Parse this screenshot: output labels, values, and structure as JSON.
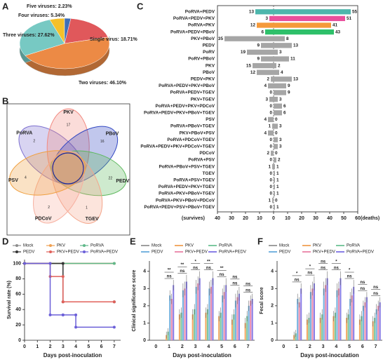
{
  "chart_data": [
    {
      "type": "pie",
      "panel": "A",
      "categories": [
        "Single virus: 18.71%",
        "Two viruses: 46.10%",
        "Three viruses: 27.62%",
        "Four viruses: 5.34%",
        "Five viruses: 2.23%"
      ],
      "values": [
        18.71,
        46.1,
        27.62,
        5.34,
        2.23
      ],
      "colors": [
        "#e0585b",
        "#ec8a45",
        "#77c9c3",
        "#f5c02a",
        "#3f6fb8"
      ]
    },
    {
      "type": "venn",
      "panel": "B",
      "sets": [
        {
          "name": "PoRVA",
          "color": "#7d70cf",
          "value": 2
        },
        {
          "name": "PKV",
          "color": "#f28b82",
          "value": 17
        },
        {
          "name": "PBoV",
          "color": "#3147c2",
          "value": 16
        },
        {
          "name": "PEDV",
          "color": "#5cb85c",
          "value": 22
        },
        {
          "name": "TGEV",
          "color": "#f4a58a",
          "value": 1
        },
        {
          "name": "PDCoV",
          "color": "#f7b0a0",
          "value": 2
        },
        {
          "name": "PSV",
          "color": "#f0a040",
          "value": 4
        }
      ]
    },
    {
      "type": "bar",
      "orientation": "horizontal",
      "panel": "C",
      "categories": [
        "PoRVA+PEDV",
        "PoRVA+PEDV+PKV",
        "PoRVA+PKV",
        "PoRVA+PEDV+PBoV",
        "PKV+PBoV",
        "PEDV",
        "PoRV",
        "PoRV+PBoV",
        "PKV",
        "PBoV",
        "PEDV+PKV",
        "PoRVA+PEDV+PKV+PBoV",
        "PoRVA+PEDV+TGEV",
        "PKV+TGEV",
        "PoRVA+PEDV+PKV+PDCoV",
        "PoRVA+PEDV+PKV+PBoV+TGEV",
        "PSV",
        "PoRVA+PBoV+TGEV",
        "PKV+PBoV+PSV",
        "PoRVA+PDCoV+TGEV",
        "PoRVA+PEDV+PKV+PDCoV+TGEV",
        "PDCoV",
        "PoRVA+PSV",
        "PoRVA+PBoV+PSV+TGEV",
        "TGEV",
        "PoRVA+PSV+TGEV",
        "PoRVA+PEDV+PKV+TGEV",
        "PoRVA+PKV+PBoV+TGEV",
        "PoRVA+PKV+PBoV+PDCoV",
        "PoRVA+PEDV+PSV+PBoV+TGEV"
      ],
      "colors": [
        "#4db6ac",
        "#e94f9c",
        "#f59a3b",
        "#2ec06a",
        "#a6a6a6",
        "#a6a6a6",
        "#a6a6a6",
        "#a6a6a6",
        "#a6a6a6",
        "#a6a6a6",
        "#a6a6a6",
        "#a6a6a6",
        "#a6a6a6",
        "#a6a6a6",
        "#a6a6a6",
        "#a6a6a6",
        "#a6a6a6",
        "#a6a6a6",
        "#a6a6a6",
        "#a6a6a6",
        "#a6a6a6",
        "#a6a6a6",
        "#a6a6a6",
        "#a6a6a6",
        "#a6a6a6",
        "#a6a6a6",
        "#a6a6a6",
        "#a6a6a6",
        "#a6a6a6",
        "#a6a6a6"
      ],
      "series": [
        {
          "name": "survives",
          "values": [
            -13,
            -3,
            -12,
            -6,
            -35,
            -9,
            -19,
            -9,
            -15,
            -12,
            -2,
            -4,
            0,
            -3,
            0,
            0,
            -4,
            -1,
            -4,
            0,
            0,
            -2,
            0,
            -1,
            0,
            0,
            0,
            0,
            -1,
            0
          ],
          "value_labels": [
            "13",
            "3",
            "12",
            "6",
            "35",
            "9",
            "19",
            "9",
            "15",
            "12",
            "2",
            "4",
            "0",
            "3",
            "0",
            "0",
            "4",
            "1",
            "4",
            "0",
            "0",
            "2",
            "0",
            "1",
            "0",
            "0",
            "0",
            "0",
            "1",
            "0"
          ]
        },
        {
          "name": "deaths",
          "values": [
            55,
            51,
            41,
            43,
            8,
            13,
            3,
            11,
            2,
            4,
            13,
            9,
            9,
            3,
            6,
            6,
            0,
            3,
            0,
            3,
            3,
            0,
            2,
            1,
            1,
            1,
            1,
            1,
            0,
            1
          ]
        }
      ],
      "xlim": [
        -40,
        60
      ],
      "xticks": [
        {
          "value": -40,
          "label": "40"
        },
        {
          "value": -30,
          "label": "30"
        },
        {
          "value": -20,
          "label": "20"
        },
        {
          "value": -10,
          "label": "10"
        },
        0,
        10,
        20,
        30,
        40,
        50,
        60
      ],
      "xlabel_left": "(survives)",
      "xlabel_right": "(deaths)"
    },
    {
      "type": "line",
      "panel": "D",
      "ylabel": "Survival rate (%)",
      "xlabel": "Days post-inoculation",
      "xlim": [
        0,
        7.5
      ],
      "xticks": [
        0,
        1,
        2,
        3,
        4,
        5,
        6,
        7
      ],
      "ylim": [
        0,
        105
      ],
      "yticks": [
        0,
        20,
        40,
        60,
        80,
        100
      ],
      "series": [
        {
          "name": "Mock",
          "color": "#8c8c8c",
          "x": [
            0,
            7
          ],
          "values": [
            100,
            100
          ]
        },
        {
          "name": "PKV",
          "color": "#f0a050",
          "x": [
            0,
            7
          ],
          "values": [
            100,
            100
          ]
        },
        {
          "name": "PoRVA",
          "color": "#5fb88a",
          "x": [
            0,
            7
          ],
          "values": [
            100,
            100
          ]
        },
        {
          "name": "PEDV",
          "color": "#333333",
          "x": [
            0,
            3,
            3,
            7
          ],
          "values": [
            100,
            100,
            50,
            50
          ]
        },
        {
          "name": "PKV+PEDV",
          "color": "#e0605a",
          "x": [
            0,
            2,
            2,
            3,
            3,
            7
          ],
          "values": [
            100,
            100,
            83,
            83,
            50,
            50
          ]
        },
        {
          "name": "PoRVA+PEDV",
          "color": "#6b5fd8",
          "x": [
            0,
            2,
            2,
            3,
            3,
            4,
            4,
            7
          ],
          "values": [
            100,
            100,
            33,
            33,
            33,
            33,
            17,
            17
          ]
        }
      ]
    },
    {
      "type": "bar",
      "panel": "E",
      "ylabel": "Clinical significance score",
      "xlabel": "Days post-inoculation",
      "categories": [
        0,
        1,
        2,
        3,
        4,
        5,
        6,
        7
      ],
      "ylim": [
        0,
        4.6
      ],
      "yticks": [
        0,
        1,
        2,
        3,
        4
      ],
      "series": [
        {
          "name": "Mock",
          "color": "#9e9e9e",
          "values": [
            0,
            0,
            0,
            0,
            0,
            0,
            0,
            0
          ],
          "errors": [
            0,
            0,
            0,
            0,
            0,
            0,
            0,
            0
          ]
        },
        {
          "name": "PKV",
          "color": "#f2aa66",
          "values": [
            0,
            0.3,
            1.5,
            1.5,
            1.6,
            1.4,
            1.2,
            1.0
          ],
          "errors": [
            0,
            0.2,
            0.3,
            0.3,
            0.3,
            0.3,
            0.3,
            0.3
          ]
        },
        {
          "name": "PoRVA",
          "color": "#7cc8a0",
          "values": [
            0,
            0.5,
            1.6,
            1.8,
            1.8,
            1.6,
            1.5,
            1.4
          ],
          "errors": [
            0,
            0.2,
            0.3,
            0.3,
            0.3,
            0.3,
            0.3,
            0.3
          ]
        },
        {
          "name": "PEDV",
          "color": "#78b4e0",
          "values": [
            0,
            2.6,
            2.9,
            3.1,
            3.0,
            2.6,
            2.3,
            2.0
          ],
          "errors": [
            0,
            0.3,
            0.4,
            0.4,
            0.4,
            0.4,
            0.4,
            0.3
          ]
        },
        {
          "name": "PKV+PEDV",
          "color": "#ec8fb0",
          "values": [
            0,
            2.4,
            3.0,
            3.3,
            3.1,
            2.8,
            2.5,
            2.3
          ],
          "errors": [
            0,
            0.3,
            0.4,
            0.4,
            0.4,
            0.4,
            0.4,
            0.3
          ]
        },
        {
          "name": "PoRVA+PEDV",
          "color": "#8a7fe6",
          "values": [
            0,
            3.2,
            3.4,
            3.6,
            3.6,
            3.2,
            2.7,
            2.4
          ],
          "errors": [
            0,
            0.3,
            0.4,
            0.4,
            0.4,
            0.4,
            0.4,
            0.3
          ]
        }
      ],
      "annotations": [
        {
          "x": 1,
          "label": "**"
        },
        {
          "x": 2,
          "label": "**"
        },
        {
          "x": 3,
          "label": "*"
        },
        {
          "x": 4,
          "label": "**"
        },
        {
          "x": 5,
          "label": "**"
        },
        {
          "x": 6,
          "label": "ns"
        },
        {
          "x": 7,
          "label": "ns"
        }
      ],
      "annotations_inner": [
        {
          "x": 1,
          "label": "ns"
        },
        {
          "x": 2,
          "label": "ns"
        },
        {
          "x": 3,
          "label": "ns"
        },
        {
          "x": 4,
          "label": "ns"
        },
        {
          "x": 5,
          "label": "ns"
        },
        {
          "x": 6,
          "label": "ns"
        },
        {
          "x": 7,
          "label": "ns"
        }
      ]
    },
    {
      "type": "bar",
      "panel": "F",
      "ylabel": "Fecal score",
      "xlabel": "Days post-inoculation",
      "categories": [
        0,
        1,
        2,
        3,
        4,
        5,
        6,
        7
      ],
      "ylim": [
        0,
        4.6
      ],
      "yticks": [
        0,
        1,
        2,
        3,
        4
      ],
      "series": [
        {
          "name": "Mock",
          "color": "#9e9e9e",
          "values": [
            0,
            0,
            0,
            0,
            0,
            0,
            0,
            0
          ],
          "errors": [
            0,
            0,
            0,
            0,
            0,
            0,
            0,
            0
          ]
        },
        {
          "name": "PKV",
          "color": "#f2aa66",
          "values": [
            0,
            0.3,
            1.2,
            1.3,
            1.4,
            1.3,
            1.2,
            1.1
          ],
          "errors": [
            0,
            0.2,
            0.3,
            0.3,
            0.3,
            0.3,
            0.3,
            0.3
          ]
        },
        {
          "name": "PoRVA",
          "color": "#7cc8a0",
          "values": [
            0,
            0.4,
            1.3,
            1.5,
            1.6,
            1.5,
            1.4,
            1.3
          ],
          "errors": [
            0,
            0.2,
            0.3,
            0.3,
            0.3,
            0.3,
            0.3,
            0.3
          ]
        },
        {
          "name": "PEDV",
          "color": "#78b4e0",
          "values": [
            0,
            2.4,
            2.8,
            3.0,
            2.9,
            2.4,
            2.0,
            1.8
          ],
          "errors": [
            0,
            0.3,
            0.4,
            0.4,
            0.4,
            0.4,
            0.3,
            0.3
          ]
        },
        {
          "name": "PKV+PEDV",
          "color": "#ec8fb0",
          "values": [
            0,
            2.2,
            3.0,
            3.2,
            3.0,
            2.6,
            2.2,
            2.0
          ],
          "errors": [
            0,
            0.3,
            0.4,
            0.4,
            0.4,
            0.4,
            0.3,
            0.3
          ]
        },
        {
          "name": "PoRVA+PEDV",
          "color": "#8a7fe6",
          "values": [
            0,
            3.0,
            3.3,
            3.6,
            3.6,
            3.1,
            2.5,
            2.2
          ],
          "errors": [
            0,
            0.3,
            0.4,
            0.4,
            0.4,
            0.4,
            0.3,
            0.3
          ]
        }
      ],
      "annotations": [
        {
          "x": 1,
          "label": "*"
        },
        {
          "x": 2,
          "label": "*"
        },
        {
          "x": 3,
          "label": "ns"
        },
        {
          "x": 4,
          "label": "*"
        },
        {
          "x": 5,
          "label": "*"
        },
        {
          "x": 6,
          "label": "ns"
        },
        {
          "x": 7,
          "label": "ns"
        }
      ],
      "annotations_inner": [
        {
          "x": 1,
          "label": "ns"
        },
        {
          "x": 2,
          "label": "ns"
        },
        {
          "x": 3,
          "label": "ns"
        },
        {
          "x": 4,
          "label": "ns"
        },
        {
          "x": 5,
          "label": "ns"
        },
        {
          "x": 6,
          "label": "ns"
        },
        {
          "x": 7,
          "label": "ns"
        }
      ]
    }
  ]
}
